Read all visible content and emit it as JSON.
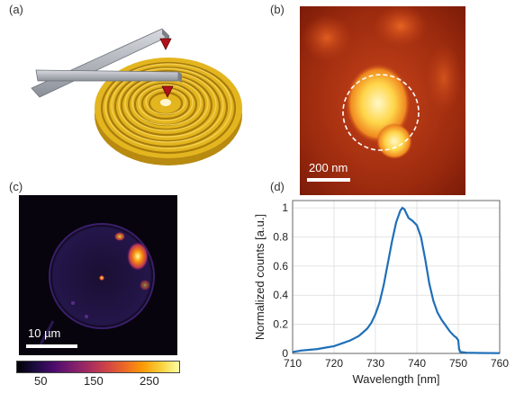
{
  "panels": {
    "a": {
      "label": "(a)"
    },
    "b": {
      "label": "(b)",
      "scalebar": "200 nm"
    },
    "c": {
      "label": "(c)",
      "scalebar": "10 µm"
    },
    "d": {
      "label": "(d)"
    }
  },
  "colorbar": {
    "ticks": [
      "50",
      "150",
      "250"
    ],
    "tick_values": [
      50,
      150,
      250
    ],
    "range": [
      0,
      290
    ]
  },
  "colors": {
    "gold": "#e0b020",
    "curve": "#1f6fb8",
    "afm_bg": "#8a1e0a",
    "afm_spot": "#ffe680"
  },
  "chart_data": {
    "type": "line",
    "xlabel": "Wavelength [nm]",
    "ylabel": "Normalized counts [a.u.]",
    "xlim": [
      710,
      760
    ],
    "ylim": [
      0,
      1.05
    ],
    "xticks": [
      710,
      720,
      730,
      740,
      750,
      760
    ],
    "yticks": [
      0,
      0.2,
      0.4,
      0.6,
      0.8,
      1
    ],
    "ytick_labels": [
      "0",
      "0.2",
      "0.4",
      "0.6",
      "0.8",
      "1"
    ],
    "grid": true,
    "series": [
      {
        "x": [
          710,
          712,
          714,
          716,
          718,
          720,
          722,
          724,
          726,
          728,
          729,
          730,
          731,
          732,
          733,
          734,
          735,
          736,
          736.5,
          737,
          737.5,
          738,
          739,
          740,
          741,
          742,
          743,
          744,
          745,
          746,
          747,
          748,
          749,
          749.5,
          750,
          750.2,
          750.5,
          752,
          755,
          760
        ],
        "y": [
          0.01,
          0.02,
          0.025,
          0.03,
          0.04,
          0.05,
          0.07,
          0.09,
          0.12,
          0.17,
          0.21,
          0.27,
          0.35,
          0.47,
          0.62,
          0.77,
          0.9,
          0.98,
          1.0,
          0.99,
          0.96,
          0.93,
          0.91,
          0.88,
          0.8,
          0.65,
          0.48,
          0.36,
          0.28,
          0.23,
          0.19,
          0.15,
          0.12,
          0.11,
          0.09,
          0.03,
          0.01,
          0.005,
          0.003,
          0.002
        ]
      }
    ]
  }
}
